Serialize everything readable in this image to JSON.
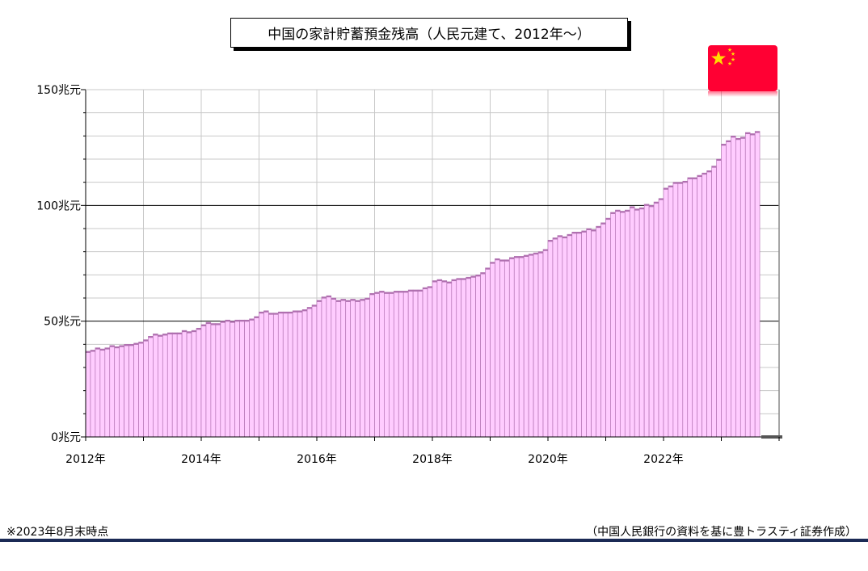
{
  "chart_data": {
    "type": "bar",
    "title": "中国の家計貯蓄預金残高（人民元建て、2012年〜）",
    "y_ticks": [
      "0兆元",
      "50兆元",
      "100兆元",
      "150兆元"
    ],
    "x_ticks": [
      "2012年",
      "2014年",
      "2016年",
      "2018年",
      "2020年",
      "2022年"
    ],
    "ylim": [
      0,
      150
    ],
    "grid": true,
    "bar_color": "#ffccff",
    "bar_edge_color": "#b070b0",
    "start": "2012-01",
    "end": "2023-08",
    "values": [
      37,
      37.5,
      38.5,
      38,
      38.5,
      39.5,
      39,
      39.5,
      40,
      40,
      40.5,
      41,
      42,
      43.5,
      44.5,
      44,
      44.5,
      45,
      45,
      45,
      46,
      45.5,
      46,
      47,
      48.5,
      49.5,
      49,
      49,
      50,
      50.5,
      50,
      50.5,
      50.5,
      50.5,
      51,
      52,
      54,
      54.5,
      53.5,
      53.5,
      54,
      54,
      54,
      54.5,
      54.5,
      55,
      56,
      57,
      59,
      60.5,
      61,
      60,
      59,
      59.5,
      59,
      59.5,
      59,
      59.5,
      60,
      62,
      62.5,
      63,
      62.5,
      62.5,
      63,
      63,
      63,
      63.5,
      63.5,
      63.5,
      64.5,
      65,
      67.5,
      68,
      67.5,
      67,
      68,
      68.5,
      68.5,
      69,
      69.5,
      70,
      71,
      73,
      75.5,
      77,
      76.5,
      76.5,
      77.5,
      78,
      78,
      78.5,
      79,
      79.5,
      80,
      81,
      85,
      86,
      87,
      86.5,
      87.5,
      88.5,
      88.5,
      89,
      90,
      89.5,
      91,
      92.5,
      94.5,
      97,
      98,
      97.5,
      98,
      99.5,
      98.5,
      99,
      100.5,
      100,
      101.5,
      103,
      107.5,
      108.5,
      110,
      110,
      110.5,
      112,
      112,
      113,
      114,
      115,
      117,
      120,
      126.5,
      128,
      130,
      129,
      129.5,
      131.5,
      131,
      132
    ]
  },
  "flag": {
    "name": "china-flag",
    "red": "#ff0033",
    "star": "#ffde00"
  },
  "notes": {
    "as_of": "※2023年8月末時点",
    "source": "（中国人民銀行の資料を基に豊トラスティ証券作成）"
  },
  "colors": {
    "rule": "#1b2a55"
  }
}
